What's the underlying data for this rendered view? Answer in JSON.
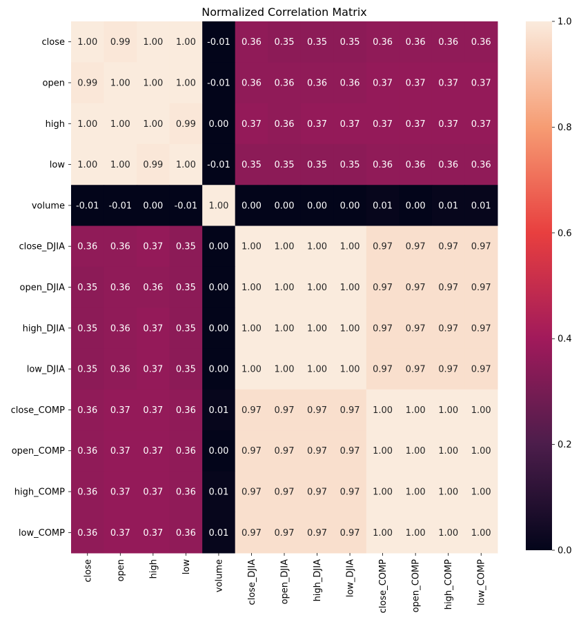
{
  "chart_data": {
    "type": "heatmap",
    "title": "Normalized Correlation Matrix",
    "xlabel": "",
    "ylabel": "",
    "x_categories": [
      "close",
      "open",
      "high",
      "low",
      "volume",
      "close_DJIA",
      "open_DJIA",
      "high_DJIA",
      "low_DJIA",
      "close_COMP",
      "open_COMP",
      "high_COMP",
      "low_COMP"
    ],
    "y_categories": [
      "close",
      "open",
      "high",
      "low",
      "volume",
      "close_DJIA",
      "open_DJIA",
      "high_DJIA",
      "low_DJIA",
      "close_COMP",
      "open_COMP",
      "high_COMP",
      "low_COMP"
    ],
    "values": [
      [
        1.0,
        0.99,
        1.0,
        1.0,
        -0.01,
        0.36,
        0.35,
        0.35,
        0.35,
        0.36,
        0.36,
        0.36,
        0.36
      ],
      [
        0.99,
        1.0,
        1.0,
        1.0,
        -0.01,
        0.36,
        0.36,
        0.36,
        0.36,
        0.37,
        0.37,
        0.37,
        0.37
      ],
      [
        1.0,
        1.0,
        1.0,
        0.99,
        -0.0,
        0.37,
        0.36,
        0.37,
        0.37,
        0.37,
        0.37,
        0.37,
        0.37
      ],
      [
        1.0,
        1.0,
        0.99,
        1.0,
        -0.01,
        0.35,
        0.35,
        0.35,
        0.35,
        0.36,
        0.36,
        0.36,
        0.36
      ],
      [
        -0.01,
        -0.01,
        -0.0,
        -0.01,
        1.0,
        0.0,
        -0.0,
        0.0,
        -0.0,
        0.01,
        0.0,
        0.01,
        0.01
      ],
      [
        0.36,
        0.36,
        0.37,
        0.35,
        0.0,
        1.0,
        1.0,
        1.0,
        1.0,
        0.97,
        0.97,
        0.97,
        0.97
      ],
      [
        0.35,
        0.36,
        0.36,
        0.35,
        -0.0,
        1.0,
        1.0,
        1.0,
        1.0,
        0.97,
        0.97,
        0.97,
        0.97
      ],
      [
        0.35,
        0.36,
        0.37,
        0.35,
        0.0,
        1.0,
        1.0,
        1.0,
        1.0,
        0.97,
        0.97,
        0.97,
        0.97
      ],
      [
        0.35,
        0.36,
        0.37,
        0.35,
        -0.0,
        1.0,
        1.0,
        1.0,
        1.0,
        0.97,
        0.97,
        0.97,
        0.97
      ],
      [
        0.36,
        0.37,
        0.37,
        0.36,
        0.01,
        0.97,
        0.97,
        0.97,
        0.97,
        1.0,
        1.0,
        1.0,
        1.0
      ],
      [
        0.36,
        0.37,
        0.37,
        0.36,
        0.0,
        0.97,
        0.97,
        0.97,
        0.97,
        1.0,
        1.0,
        1.0,
        1.0
      ],
      [
        0.36,
        0.37,
        0.37,
        0.36,
        0.01,
        0.97,
        0.97,
        0.97,
        0.97,
        1.0,
        1.0,
        1.0,
        1.0
      ],
      [
        0.36,
        0.37,
        0.37,
        0.36,
        0.01,
        0.97,
        0.97,
        0.97,
        0.97,
        1.0,
        1.0,
        1.0,
        1.0
      ]
    ],
    "value_format": "0.00",
    "colorbar": {
      "min": 0.0,
      "max": 1.0,
      "ticks": [
        "0.0",
        "0.2",
        "0.4",
        "0.6",
        "0.8",
        "1.0"
      ],
      "colormap": "rocket",
      "colors": [
        "#03051a",
        "#4c1d4b",
        "#a11a5b",
        "#e83f3f",
        "#f69c73",
        "#faebdd"
      ]
    },
    "legend": "none"
  }
}
